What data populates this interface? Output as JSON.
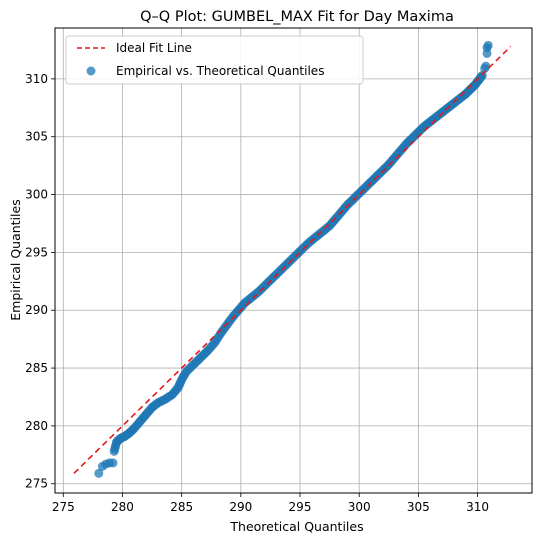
{
  "chart_data": {
    "type": "scatter",
    "title": "Q–Q Plot: GUMBEL_MAX Fit for Day Maxima",
    "xlabel": "Theoretical Quantiles",
    "ylabel": "Empirical Quantiles",
    "xlim": [
      274.3,
      314.6
    ],
    "ylim": [
      274.2,
      314.4
    ],
    "xticks": [
      275,
      280,
      285,
      290,
      295,
      300,
      305,
      310
    ],
    "yticks": [
      275,
      280,
      285,
      290,
      295,
      300,
      305,
      310
    ],
    "grid": true,
    "legend_position": "top-left",
    "colors": {
      "ideal_line": "#e41a1c",
      "points": "#1f77b4"
    },
    "series": [
      {
        "name": "Ideal Fit Line",
        "kind": "dashed-line",
        "x": [
          275.9,
          312.8
        ],
        "y": [
          275.9,
          312.8
        ]
      },
      {
        "name": "Empirical vs. Theoretical Quantiles",
        "kind": "scatter",
        "points": [
          [
            278.0,
            275.9
          ],
          [
            278.3,
            276.5
          ],
          [
            278.6,
            276.7
          ],
          [
            278.9,
            276.8
          ],
          [
            279.2,
            276.8
          ],
          [
            279.3,
            277.8
          ],
          [
            279.5,
            278.6
          ],
          [
            279.8,
            278.9
          ],
          [
            280.2,
            279.1
          ],
          [
            280.6,
            279.4
          ],
          [
            281.0,
            279.8
          ],
          [
            281.5,
            280.4
          ],
          [
            282.0,
            281.0
          ],
          [
            282.5,
            281.6
          ],
          [
            283.0,
            282.0
          ],
          [
            283.6,
            282.3
          ],
          [
            284.2,
            282.7
          ],
          [
            284.7,
            283.3
          ],
          [
            285.0,
            284.0
          ],
          [
            285.4,
            284.7
          ],
          [
            286.0,
            285.3
          ],
          [
            286.6,
            285.9
          ],
          [
            287.2,
            286.5
          ],
          [
            287.8,
            287.2
          ],
          [
            288.3,
            288.0
          ],
          [
            288.8,
            288.7
          ],
          [
            289.3,
            289.4
          ],
          [
            289.8,
            290.0
          ],
          [
            290.3,
            290.6
          ],
          [
            290.9,
            291.1
          ],
          [
            291.5,
            291.6
          ],
          [
            292.1,
            292.2
          ],
          [
            292.7,
            292.8
          ],
          [
            293.3,
            293.4
          ],
          [
            293.9,
            294.0
          ],
          [
            294.5,
            294.6
          ],
          [
            295.1,
            295.2
          ],
          [
            295.7,
            295.8
          ],
          [
            296.3,
            296.3
          ],
          [
            296.9,
            296.8
          ],
          [
            297.5,
            297.3
          ],
          [
            298.0,
            297.9
          ],
          [
            298.5,
            298.5
          ],
          [
            299.0,
            299.1
          ],
          [
            299.5,
            299.6
          ],
          [
            300.0,
            300.1
          ],
          [
            300.5,
            300.6
          ],
          [
            301.0,
            301.1
          ],
          [
            301.5,
            301.6
          ],
          [
            302.0,
            302.1
          ],
          [
            302.5,
            302.6
          ],
          [
            303.0,
            303.2
          ],
          [
            303.5,
            303.8
          ],
          [
            304.0,
            304.4
          ],
          [
            304.5,
            304.9
          ],
          [
            305.0,
            305.4
          ],
          [
            305.5,
            305.9
          ],
          [
            306.0,
            306.3
          ],
          [
            306.5,
            306.7
          ],
          [
            307.0,
            307.1
          ],
          [
            307.5,
            307.5
          ],
          [
            308.0,
            307.9
          ],
          [
            308.5,
            308.3
          ],
          [
            309.0,
            308.7
          ],
          [
            309.4,
            309.1
          ],
          [
            309.8,
            309.5
          ],
          [
            310.1,
            309.9
          ],
          [
            310.4,
            310.3
          ],
          [
            310.6,
            310.9
          ],
          [
            310.7,
            311.1
          ],
          [
            310.8,
            312.2
          ],
          [
            310.8,
            312.7
          ],
          [
            310.9,
            312.9
          ]
        ]
      }
    ]
  }
}
